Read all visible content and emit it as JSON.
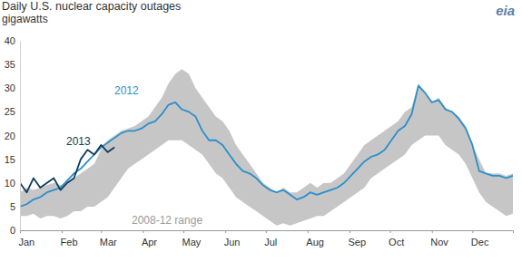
{
  "chart_data": {
    "type": "line",
    "title": "Daily U.S. nuclear capacity outages",
    "subtitle": "gigawatts",
    "logo": "eia",
    "x": [
      1,
      6,
      11,
      16,
      21,
      26,
      31,
      36,
      41,
      46,
      51,
      56,
      61,
      66,
      71,
      76,
      81,
      86,
      91,
      96,
      101,
      106,
      111,
      116,
      121,
      126,
      131,
      136,
      141,
      146,
      151,
      156,
      161,
      166,
      171,
      176,
      181,
      186,
      191,
      196,
      201,
      206,
      211,
      216,
      221,
      226,
      231,
      236,
      241,
      246,
      251,
      256,
      261,
      266,
      271,
      276,
      281,
      286,
      291,
      296,
      301,
      306,
      311,
      316,
      321,
      326,
      331,
      336,
      341,
      346,
      351,
      356,
      361,
      366
    ],
    "xlim": [
      1,
      366
    ],
    "xticks": [
      {
        "value": 1,
        "label": "Jan"
      },
      {
        "value": 32,
        "label": "Feb"
      },
      {
        "value": 61,
        "label": "Mar"
      },
      {
        "value": 92,
        "label": "Apr"
      },
      {
        "value": 122,
        "label": "May"
      },
      {
        "value": 153,
        "label": "Jun"
      },
      {
        "value": 183,
        "label": "Jul"
      },
      {
        "value": 214,
        "label": "Aug"
      },
      {
        "value": 245,
        "label": "Sep"
      },
      {
        "value": 275,
        "label": "Oct"
      },
      {
        "value": 306,
        "label": "Nov"
      },
      {
        "value": 336,
        "label": "Dec"
      }
    ],
    "ylim": [
      0,
      40
    ],
    "yticks": [
      0,
      5,
      10,
      15,
      20,
      25,
      30,
      35,
      40
    ],
    "grid": false,
    "series": [
      {
        "name": "2008-12 range",
        "type": "area",
        "color": "#c6c6c6",
        "lower": [
          3,
          3,
          3.5,
          2.5,
          3,
          3,
          2.5,
          3,
          4,
          4,
          5,
          5,
          6,
          7,
          9,
          11,
          13,
          14,
          15,
          16,
          17,
          18,
          19,
          19,
          19,
          18,
          17,
          16,
          14,
          12,
          11,
          9,
          7,
          6,
          5,
          4,
          3,
          2,
          1,
          1.5,
          1,
          1.5,
          2,
          2.5,
          3,
          3,
          4,
          5,
          6,
          7,
          8,
          9,
          11,
          12,
          13,
          14,
          15,
          16,
          18,
          19,
          20,
          20,
          20,
          18,
          17,
          16,
          14,
          11,
          8,
          6,
          5,
          4,
          3,
          3.5
        ],
        "upper": [
          8,
          9,
          8.5,
          9,
          9.5,
          10,
          9.5,
          10,
          11,
          12,
          13,
          14,
          17,
          19,
          20,
          21,
          21.5,
          22,
          23,
          24,
          26,
          28,
          31,
          33,
          34,
          33,
          30,
          28,
          26,
          24,
          23,
          21,
          18,
          16,
          14,
          12,
          10,
          9,
          8,
          9,
          8,
          8,
          9,
          10,
          9,
          10,
          10,
          11,
          12,
          14,
          16,
          18,
          19,
          20,
          21,
          22,
          23,
          25,
          26,
          31,
          29,
          27,
          28,
          26,
          25,
          24,
          22,
          18,
          15,
          12,
          12,
          12,
          11.5,
          12
        ]
      },
      {
        "name": "2012",
        "type": "line",
        "color": "#2a8fcc",
        "values": [
          5,
          5.5,
          6.5,
          7,
          8,
          8.5,
          9,
          10.5,
          12,
          13,
          14.5,
          16,
          17.5,
          18.5,
          19.5,
          20.5,
          21,
          21,
          21.5,
          22.5,
          23,
          24.5,
          26.5,
          27,
          25.5,
          25,
          24,
          21,
          19,
          19,
          18,
          16,
          14,
          12.5,
          12,
          11,
          9.5,
          8.5,
          8,
          8.5,
          7.5,
          6.5,
          7,
          8,
          7.5,
          8,
          8.5,
          9,
          10,
          11.5,
          13,
          14.5,
          15.5,
          16,
          17,
          19,
          21,
          22,
          24.5,
          30.5,
          29,
          27,
          27.5,
          25.5,
          25,
          23.5,
          21.5,
          18,
          12.5,
          12,
          11.5,
          11.5,
          11,
          11.5
        ]
      },
      {
        "name": "2013",
        "type": "line",
        "color": "#0e3b5a",
        "values": [
          10,
          8,
          11,
          9,
          10,
          11,
          8.5,
          10,
          11,
          15,
          17,
          16,
          18,
          16.5,
          17.5,
          null,
          null,
          null,
          null,
          null,
          null,
          null,
          null,
          null,
          null,
          null,
          null,
          null,
          null,
          null,
          null,
          null,
          null,
          null,
          null,
          null,
          null,
          null,
          null,
          null,
          null,
          null,
          null,
          null,
          null,
          null,
          null,
          null,
          null,
          null,
          null,
          null,
          null,
          null,
          null,
          null,
          null,
          null,
          null,
          null,
          null,
          null,
          null,
          null,
          null,
          null,
          null,
          null,
          null,
          null,
          null,
          null,
          null,
          null
        ]
      }
    ]
  }
}
